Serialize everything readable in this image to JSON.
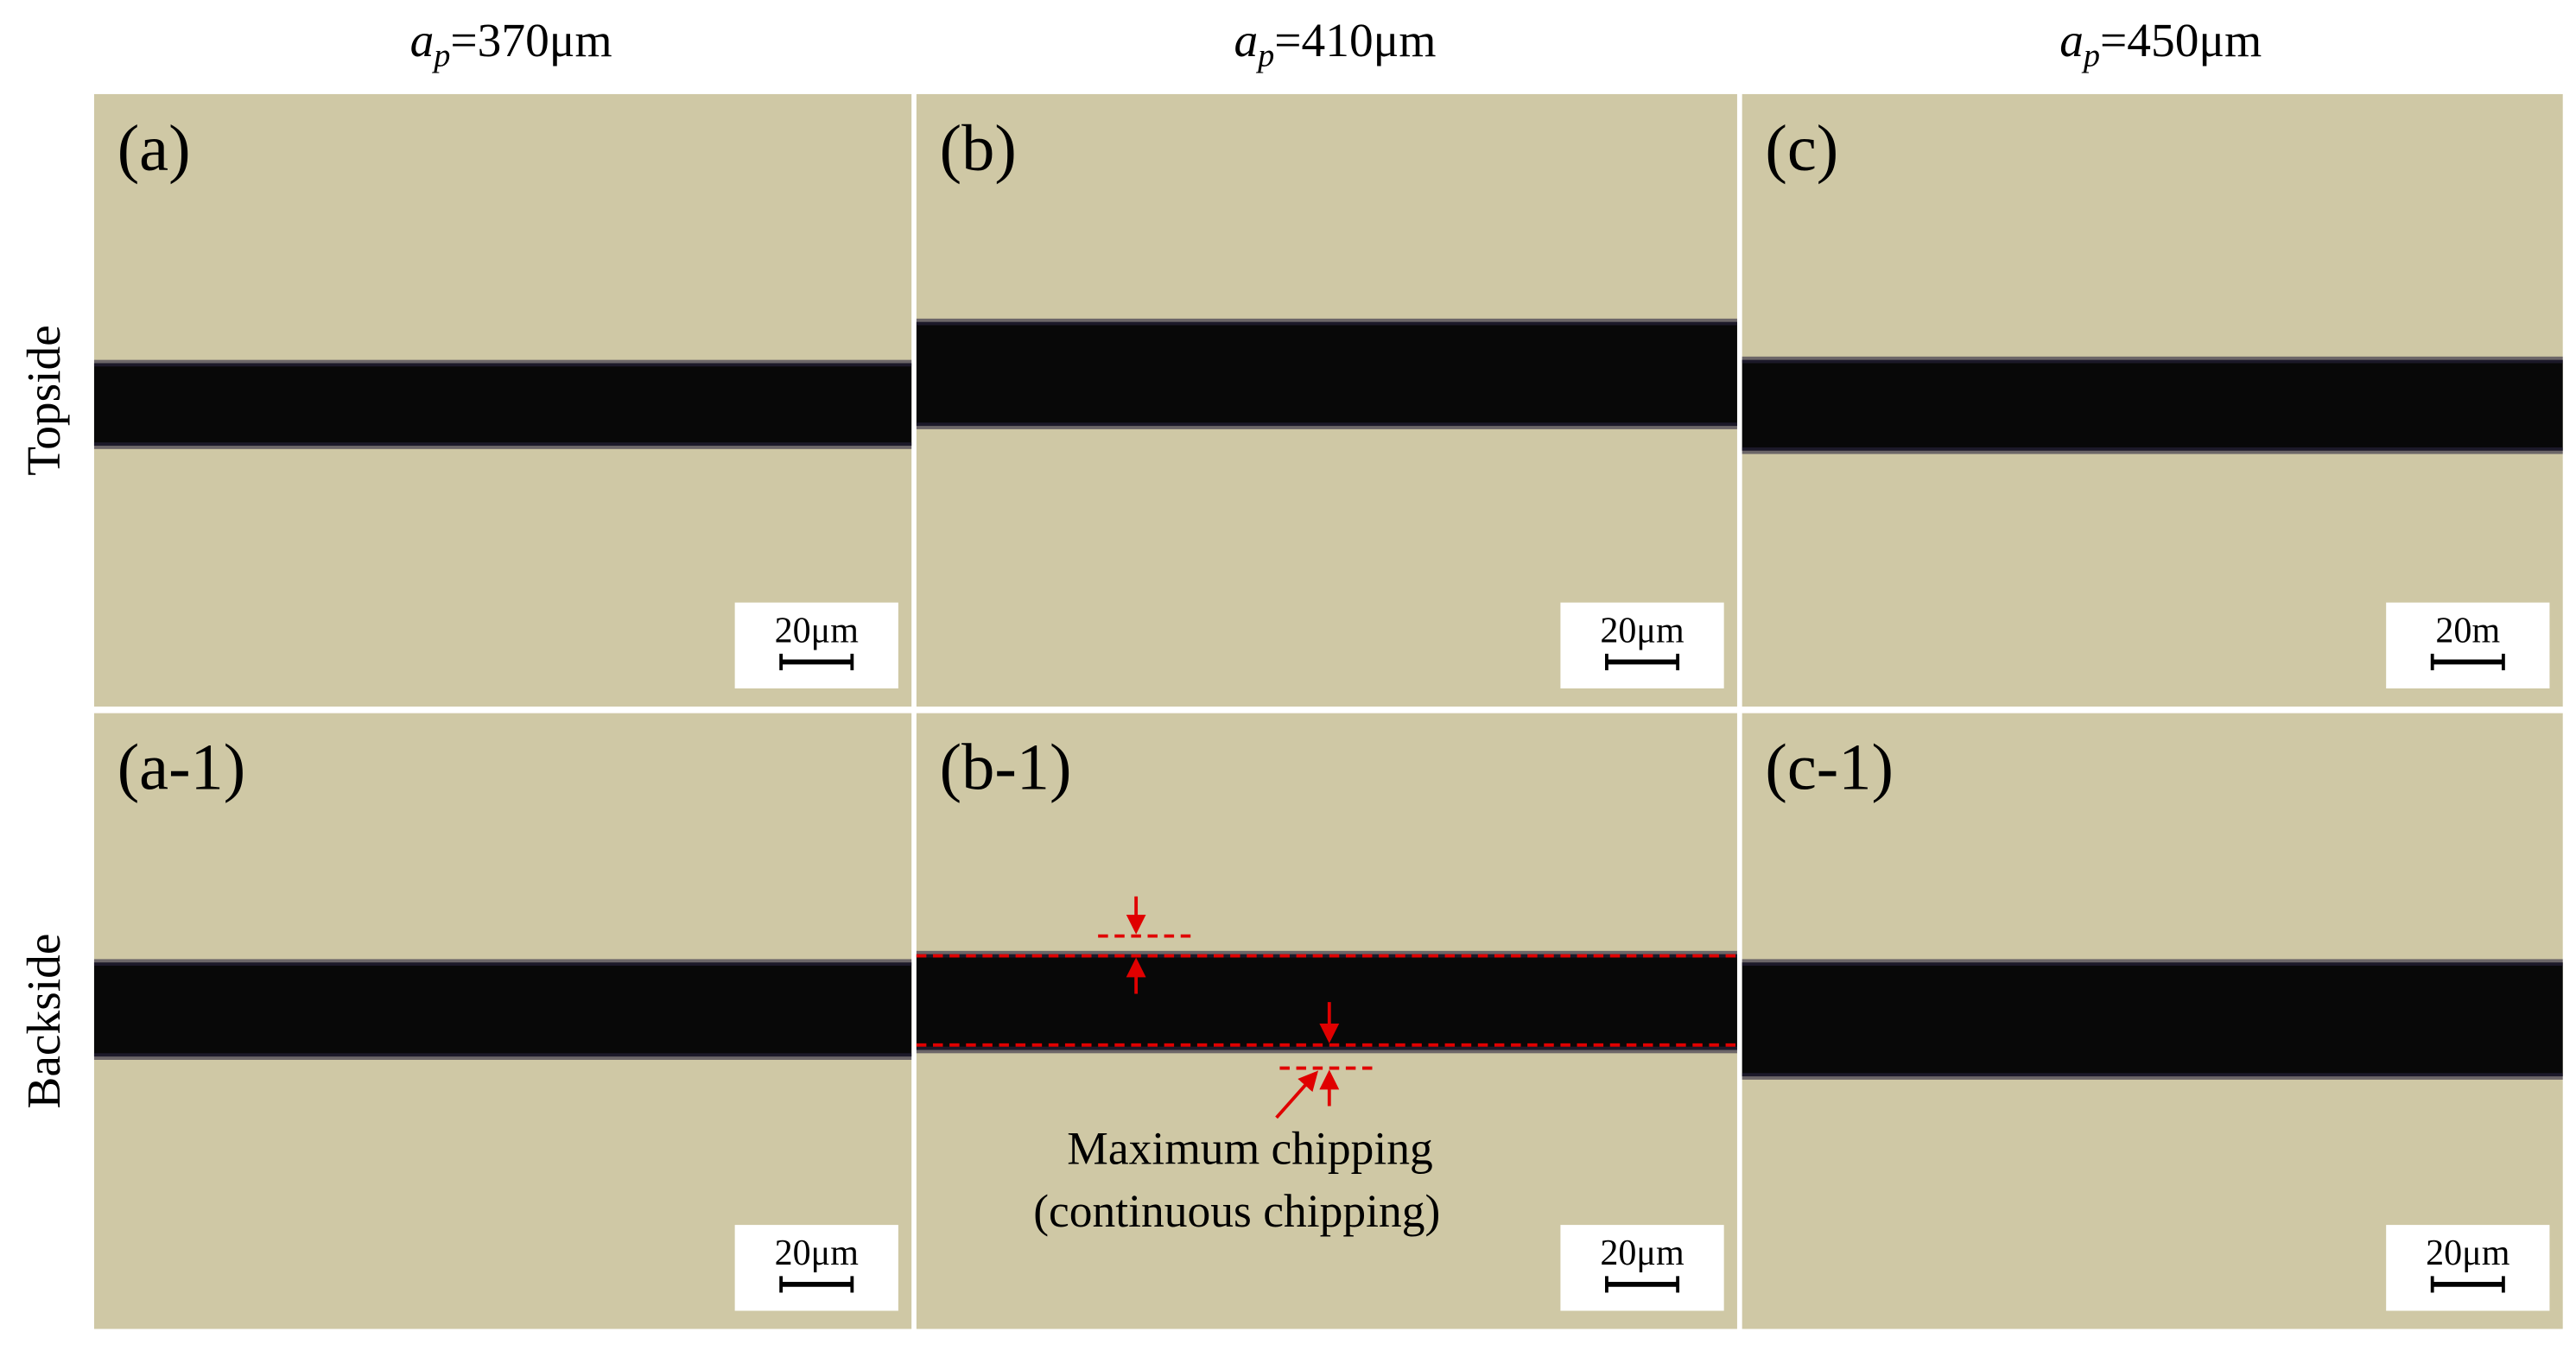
{
  "header": {
    "columns": [
      {
        "symbol": "a",
        "subscript": "p",
        "text": "=370μm"
      },
      {
        "symbol": "a",
        "subscript": "p",
        "text": "=410μm"
      },
      {
        "symbol": "a",
        "subscript": "p",
        "text": "=450μm"
      }
    ]
  },
  "rows": [
    "Topside",
    "Backside"
  ],
  "panels": [
    {
      "label": "(a)",
      "scale_bar": "20μm"
    },
    {
      "label": "(b)",
      "scale_bar": "20μm"
    },
    {
      "label": "(c)",
      "scale_bar": "20m"
    },
    {
      "label": "(a-1)",
      "scale_bar": "20μm"
    },
    {
      "label": "(b-1)",
      "scale_bar": "20μm"
    },
    {
      "label": "(c-1)",
      "scale_bar": "20μm"
    }
  ],
  "annotation": [
    "Maximum chipping",
    "(continuous chipping)"
  ]
}
